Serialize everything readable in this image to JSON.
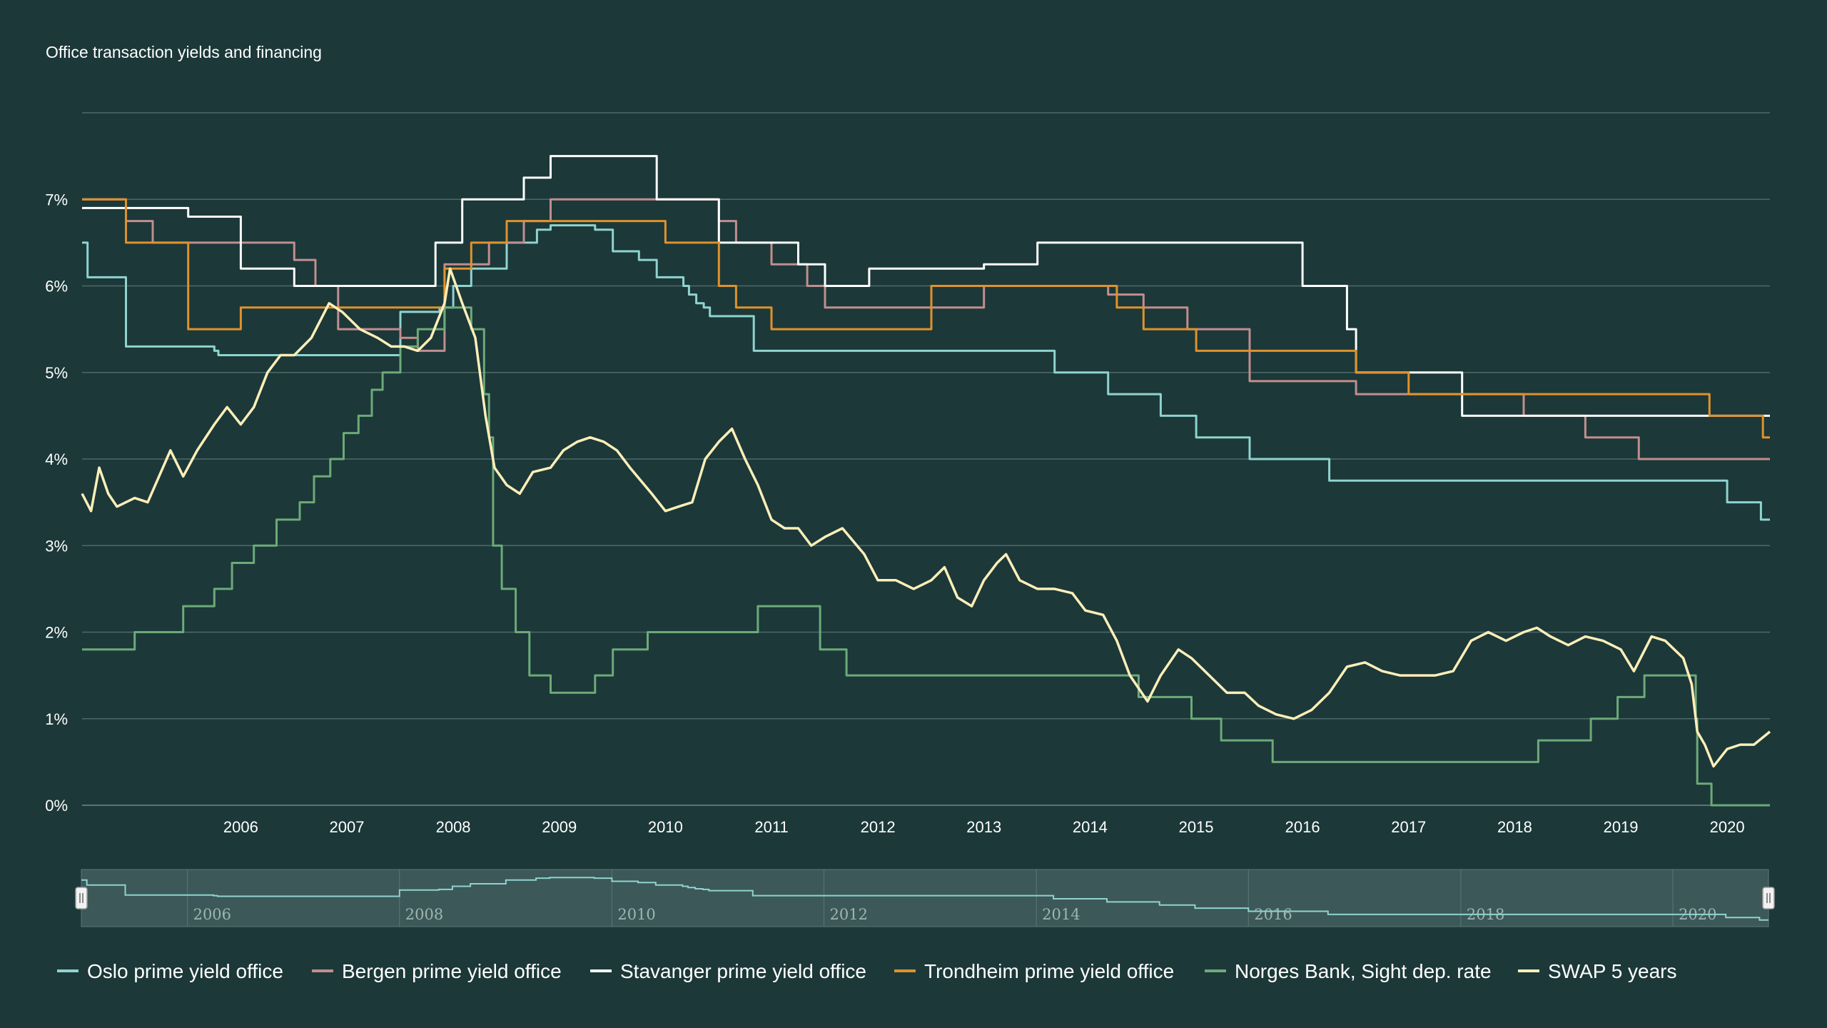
{
  "chart_data": {
    "type": "line",
    "title": "Office transaction yields and financing",
    "xlim": [
      "2005-01-01",
      "2020-11-25"
    ],
    "ylim": [
      0,
      8
    ],
    "grid": true,
    "legend_position": "bottom",
    "y_ticks": [
      {
        "value": 0,
        "label": "0%"
      },
      {
        "value": 1,
        "label": "1%"
      },
      {
        "value": 2,
        "label": "2%"
      },
      {
        "value": 3,
        "label": "3%"
      },
      {
        "value": 4,
        "label": "4%"
      },
      {
        "value": 5,
        "label": "5%"
      },
      {
        "value": 6,
        "label": "6%"
      },
      {
        "value": 7,
        "label": "7%"
      }
    ],
    "x_ticks": [
      "2006",
      "2007",
      "2008",
      "2009",
      "2010",
      "2011",
      "2012",
      "2013",
      "2014",
      "2015",
      "2016",
      "2017",
      "2018",
      "2019",
      "2020"
    ],
    "navigator": {
      "labels": [
        "2006",
        "2008",
        "2010",
        "2012",
        "2014",
        "2016",
        "2018",
        "2020"
      ],
      "series_shown": "Oslo prime yield office"
    },
    "series": [
      {
        "name": "Oslo prime yield office",
        "color": "#8fd3cf",
        "step": true,
        "points": [
          [
            "2005-01-01",
            6.5
          ],
          [
            "2005-01-20",
            6.1
          ],
          [
            "2005-06-01",
            5.3
          ],
          [
            "2006-04-01",
            5.25
          ],
          [
            "2006-04-15",
            5.2
          ],
          [
            "2007-10-01",
            5.2
          ],
          [
            "2008-01-01",
            5.7
          ],
          [
            "2008-05-15",
            5.75
          ],
          [
            "2008-07-01",
            6.0
          ],
          [
            "2008-09-01",
            6.2
          ],
          [
            "2009-01-01",
            6.5
          ],
          [
            "2009-04-15",
            6.65
          ],
          [
            "2009-06-01",
            6.7
          ],
          [
            "2009-11-01",
            6.65
          ],
          [
            "2010-01-01",
            6.4
          ],
          [
            "2010-04-01",
            6.3
          ],
          [
            "2010-06-01",
            6.1
          ],
          [
            "2010-09-01",
            6.0
          ],
          [
            "2010-09-20",
            5.9
          ],
          [
            "2010-10-15",
            5.8
          ],
          [
            "2010-11-10",
            5.75
          ],
          [
            "2010-12-01",
            5.65
          ],
          [
            "2011-05-01",
            5.25
          ],
          [
            "2014-03-01",
            5.0
          ],
          [
            "2014-09-01",
            4.75
          ],
          [
            "2015-03-01",
            4.5
          ],
          [
            "2015-07-01",
            4.25
          ],
          [
            "2016-01-01",
            4.0
          ],
          [
            "2016-10-01",
            3.75
          ],
          [
            "2020-07-01",
            3.5
          ],
          [
            "2020-10-25",
            3.3
          ],
          [
            "2020-11-25",
            3.3
          ]
        ]
      },
      {
        "name": "Bergen prime yield office",
        "color": "#c28e8e",
        "step": true,
        "points": [
          [
            "2005-01-01",
            7.0
          ],
          [
            "2005-06-01",
            6.75
          ],
          [
            "2005-09-01",
            6.5
          ],
          [
            "2006-10-01",
            6.5
          ],
          [
            "2007-01-01",
            6.3
          ],
          [
            "2007-03-15",
            6.0
          ],
          [
            "2007-06-01",
            5.5
          ],
          [
            "2008-01-01",
            5.4
          ],
          [
            "2008-03-01",
            5.25
          ],
          [
            "2008-06-01",
            6.25
          ],
          [
            "2008-11-01",
            6.5
          ],
          [
            "2009-03-01",
            6.75
          ],
          [
            "2009-06-01",
            7.0
          ],
          [
            "2011-01-01",
            6.75
          ],
          [
            "2011-03-01",
            6.5
          ],
          [
            "2011-07-01",
            6.25
          ],
          [
            "2011-11-01",
            6.0
          ],
          [
            "2012-01-01",
            5.75
          ],
          [
            "2013-07-01",
            6.0
          ],
          [
            "2014-09-01",
            5.9
          ],
          [
            "2015-01-01",
            5.75
          ],
          [
            "2015-06-01",
            5.5
          ],
          [
            "2016-01-01",
            4.9
          ],
          [
            "2017-01-01",
            4.75
          ],
          [
            "2018-08-01",
            4.5
          ],
          [
            "2019-03-01",
            4.25
          ],
          [
            "2019-09-01",
            4.0
          ],
          [
            "2020-11-25",
            4.0
          ]
        ]
      },
      {
        "name": "Stavanger prime yield office",
        "color": "#ffffff",
        "step": true,
        "points": [
          [
            "2005-01-01",
            6.9
          ],
          [
            "2006-01-01",
            6.8
          ],
          [
            "2006-07-01",
            6.2
          ],
          [
            "2007-01-01",
            6.0
          ],
          [
            "2008-05-01",
            6.5
          ],
          [
            "2008-08-01",
            7.0
          ],
          [
            "2009-03-01",
            7.25
          ],
          [
            "2009-06-01",
            7.5
          ],
          [
            "2010-06-01",
            7.0
          ],
          [
            "2011-01-01",
            6.5
          ],
          [
            "2011-10-01",
            6.25
          ],
          [
            "2012-01-01",
            6.0
          ],
          [
            "2012-06-01",
            6.2
          ],
          [
            "2013-07-01",
            6.25
          ],
          [
            "2014-01-01",
            6.5
          ],
          [
            "2016-07-01",
            6.0
          ],
          [
            "2016-12-01",
            5.5
          ],
          [
            "2017-01-01",
            5.0
          ],
          [
            "2018-01-01",
            4.5
          ],
          [
            "2020-06-01",
            4.5
          ],
          [
            "2020-11-25",
            4.5
          ]
        ]
      },
      {
        "name": "Trondheim prime yield office",
        "color": "#e0922b",
        "step": true,
        "points": [
          [
            "2005-01-01",
            7.0
          ],
          [
            "2005-06-01",
            6.5
          ],
          [
            "2006-01-01",
            5.5
          ],
          [
            "2006-07-01",
            5.75
          ],
          [
            "2008-06-01",
            6.2
          ],
          [
            "2008-09-01",
            6.5
          ],
          [
            "2009-01-01",
            6.75
          ],
          [
            "2010-07-01",
            6.5
          ],
          [
            "2011-01-01",
            6.0
          ],
          [
            "2011-03-01",
            5.75
          ],
          [
            "2011-07-01",
            5.5
          ],
          [
            "2013-01-01",
            6.0
          ],
          [
            "2014-10-01",
            5.75
          ],
          [
            "2015-01-01",
            5.5
          ],
          [
            "2015-07-01",
            5.25
          ],
          [
            "2017-01-01",
            5.0
          ],
          [
            "2017-07-01",
            4.75
          ],
          [
            "2020-05-01",
            4.5
          ],
          [
            "2020-11-01",
            4.25
          ],
          [
            "2020-11-25",
            4.25
          ]
        ]
      },
      {
        "name": "Norges Bank, Sight dep. rate",
        "color": "#6daa78",
        "step": true,
        "points": [
          [
            "2005-01-01",
            1.8
          ],
          [
            "2005-07-01",
            2.0
          ],
          [
            "2005-12-15",
            2.3
          ],
          [
            "2006-04-01",
            2.5
          ],
          [
            "2006-06-01",
            2.8
          ],
          [
            "2006-08-15",
            3.0
          ],
          [
            "2006-11-01",
            3.3
          ],
          [
            "2007-01-20",
            3.5
          ],
          [
            "2007-03-10",
            3.8
          ],
          [
            "2007-05-05",
            4.0
          ],
          [
            "2007-06-20",
            4.3
          ],
          [
            "2007-08-10",
            4.5
          ],
          [
            "2007-09-25",
            4.8
          ],
          [
            "2007-11-01",
            5.0
          ],
          [
            "2008-01-01",
            5.3
          ],
          [
            "2008-03-01",
            5.5
          ],
          [
            "2008-06-01",
            5.75
          ],
          [
            "2008-09-01",
            5.5
          ],
          [
            "2008-10-15",
            4.75
          ],
          [
            "2008-11-01",
            4.25
          ],
          [
            "2008-11-15",
            3.0
          ],
          [
            "2008-12-15",
            2.5
          ],
          [
            "2009-02-01",
            2.0
          ],
          [
            "2009-03-20",
            1.5
          ],
          [
            "2009-06-01",
            1.3
          ],
          [
            "2009-11-01",
            1.5
          ],
          [
            "2010-01-01",
            1.8
          ],
          [
            "2010-05-01",
            2.0
          ],
          [
            "2011-05-15",
            2.3
          ],
          [
            "2011-12-15",
            1.8
          ],
          [
            "2012-03-15",
            1.5
          ],
          [
            "2014-12-15",
            1.25
          ],
          [
            "2015-06-15",
            1.0
          ],
          [
            "2015-09-25",
            0.75
          ],
          [
            "2016-03-20",
            0.5
          ],
          [
            "2018-09-20",
            0.75
          ],
          [
            "2019-03-20",
            1.0
          ],
          [
            "2019-06-20",
            1.25
          ],
          [
            "2019-09-20",
            1.5
          ],
          [
            "2020-03-15",
            1.0
          ],
          [
            "2020-03-20",
            0.25
          ],
          [
            "2020-05-08",
            0.0
          ],
          [
            "2020-11-25",
            0.0
          ]
        ]
      },
      {
        "name": "SWAP 5 years",
        "color": "#ffefb8",
        "step": false,
        "points": [
          [
            "2005-01-01",
            3.6
          ],
          [
            "2005-02-01",
            3.4
          ],
          [
            "2005-03-01",
            3.9
          ],
          [
            "2005-04-01",
            3.6
          ],
          [
            "2005-05-01",
            3.45
          ],
          [
            "2005-07-01",
            3.55
          ],
          [
            "2005-08-15",
            3.5
          ],
          [
            "2005-11-01",
            4.1
          ],
          [
            "2005-12-15",
            3.8
          ],
          [
            "2006-02-01",
            4.1
          ],
          [
            "2006-04-01",
            4.4
          ],
          [
            "2006-05-15",
            4.6
          ],
          [
            "2006-07-01",
            4.4
          ],
          [
            "2006-08-15",
            4.6
          ],
          [
            "2006-10-01",
            5.0
          ],
          [
            "2006-11-15",
            5.2
          ],
          [
            "2007-01-01",
            5.2
          ],
          [
            "2007-03-01",
            5.4
          ],
          [
            "2007-05-01",
            5.8
          ],
          [
            "2007-06-15",
            5.7
          ],
          [
            "2007-08-15",
            5.5
          ],
          [
            "2007-10-15",
            5.4
          ],
          [
            "2007-12-01",
            5.3
          ],
          [
            "2008-01-15",
            5.3
          ],
          [
            "2008-03-01",
            5.25
          ],
          [
            "2008-04-15",
            5.4
          ],
          [
            "2008-06-01",
            5.8
          ],
          [
            "2008-06-20",
            6.2
          ],
          [
            "2008-08-01",
            5.8
          ],
          [
            "2008-09-15",
            5.4
          ],
          [
            "2008-10-20",
            4.5
          ],
          [
            "2008-11-20",
            3.9
          ],
          [
            "2009-01-01",
            3.7
          ],
          [
            "2009-02-15",
            3.6
          ],
          [
            "2009-04-01",
            3.85
          ],
          [
            "2009-06-01",
            3.9
          ],
          [
            "2009-07-15",
            4.1
          ],
          [
            "2009-09-01",
            4.2
          ],
          [
            "2009-10-15",
            4.25
          ],
          [
            "2009-12-01",
            4.2
          ],
          [
            "2010-01-15",
            4.1
          ],
          [
            "2010-03-01",
            3.9
          ],
          [
            "2010-05-15",
            3.6
          ],
          [
            "2010-07-01",
            3.4
          ],
          [
            "2010-08-15",
            3.45
          ],
          [
            "2010-10-01",
            3.5
          ],
          [
            "2010-11-15",
            4.0
          ],
          [
            "2011-01-01",
            4.2
          ],
          [
            "2011-02-15",
            4.35
          ],
          [
            "2011-04-01",
            4.0
          ],
          [
            "2011-05-15",
            3.7
          ],
          [
            "2011-07-01",
            3.3
          ],
          [
            "2011-08-15",
            3.2
          ],
          [
            "2011-10-01",
            3.2
          ],
          [
            "2011-11-15",
            3.0
          ],
          [
            "2012-01-01",
            3.1
          ],
          [
            "2012-03-01",
            3.2
          ],
          [
            "2012-05-15",
            2.9
          ],
          [
            "2012-07-01",
            2.6
          ],
          [
            "2012-09-01",
            2.6
          ],
          [
            "2012-11-01",
            2.5
          ],
          [
            "2013-01-01",
            2.6
          ],
          [
            "2013-02-15",
            2.75
          ],
          [
            "2013-04-01",
            2.4
          ],
          [
            "2013-05-20",
            2.3
          ],
          [
            "2013-07-01",
            2.6
          ],
          [
            "2013-08-15",
            2.8
          ],
          [
            "2013-09-15",
            2.9
          ],
          [
            "2013-11-01",
            2.6
          ],
          [
            "2014-01-01",
            2.5
          ],
          [
            "2014-03-01",
            2.5
          ],
          [
            "2014-05-01",
            2.45
          ],
          [
            "2014-06-15",
            2.25
          ],
          [
            "2014-08-15",
            2.2
          ],
          [
            "2014-10-01",
            1.9
          ],
          [
            "2014-11-15",
            1.5
          ],
          [
            "2015-01-15",
            1.2
          ],
          [
            "2015-03-01",
            1.5
          ],
          [
            "2015-05-01",
            1.8
          ],
          [
            "2015-06-15",
            1.7
          ],
          [
            "2015-08-15",
            1.5
          ],
          [
            "2015-10-15",
            1.3
          ],
          [
            "2015-12-15",
            1.3
          ],
          [
            "2016-02-01",
            1.15
          ],
          [
            "2016-04-01",
            1.05
          ],
          [
            "2016-06-01",
            1.0
          ],
          [
            "2016-08-01",
            1.1
          ],
          [
            "2016-10-01",
            1.3
          ],
          [
            "2016-12-01",
            1.6
          ],
          [
            "2017-02-01",
            1.65
          ],
          [
            "2017-04-01",
            1.55
          ],
          [
            "2017-06-01",
            1.5
          ],
          [
            "2017-08-01",
            1.5
          ],
          [
            "2017-10-01",
            1.5
          ],
          [
            "2017-12-01",
            1.55
          ],
          [
            "2018-02-01",
            1.9
          ],
          [
            "2018-04-01",
            2.0
          ],
          [
            "2018-06-01",
            1.9
          ],
          [
            "2018-08-01",
            2.0
          ],
          [
            "2018-09-15",
            2.05
          ],
          [
            "2018-11-01",
            1.95
          ],
          [
            "2019-01-01",
            1.85
          ],
          [
            "2019-03-01",
            1.95
          ],
          [
            "2019-05-01",
            1.9
          ],
          [
            "2019-07-01",
            1.8
          ],
          [
            "2019-08-15",
            1.55
          ],
          [
            "2019-10-15",
            1.95
          ],
          [
            "2019-12-01",
            1.9
          ],
          [
            "2020-02-01",
            1.7
          ],
          [
            "2020-03-01",
            1.4
          ],
          [
            "2020-03-20",
            0.85
          ],
          [
            "2020-04-15",
            0.7
          ],
          [
            "2020-05-15",
            0.45
          ],
          [
            "2020-07-01",
            0.65
          ],
          [
            "2020-08-15",
            0.7
          ],
          [
            "2020-10-01",
            0.7
          ],
          [
            "2020-11-25",
            0.85
          ]
        ]
      }
    ]
  }
}
